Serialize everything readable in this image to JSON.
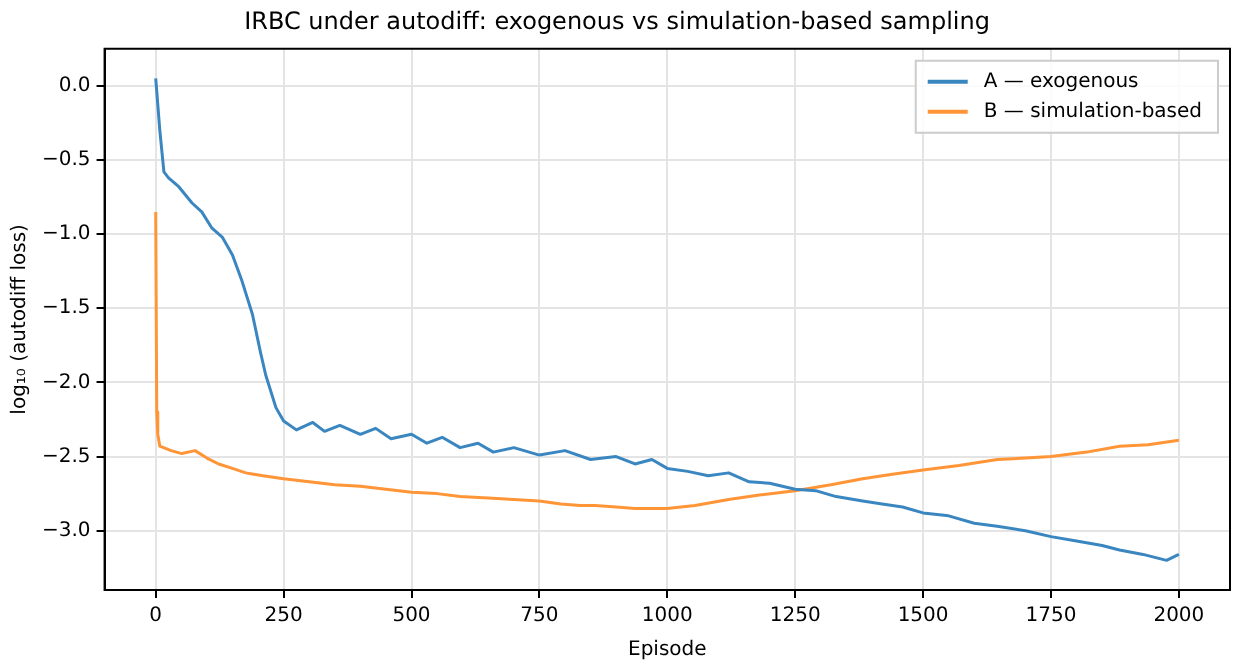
{
  "chart_data": {
    "type": "line",
    "title": "IRBC under autodiff: exogenous vs simulation-based sampling",
    "xlabel": "Episode",
    "ylabel": "log₁₀ (autodiff loss)",
    "xlim": [
      -100,
      2100
    ],
    "xticks": [
      0,
      250,
      500,
      750,
      1000,
      1250,
      1500,
      1750,
      2000
    ],
    "ylim": [
      -3.4,
      0.25
    ],
    "yticks": [
      {
        "value": -3,
        "label": "−3.0"
      },
      {
        "value": -2.5,
        "label": "−2.5"
      },
      {
        "value": -2,
        "label": "−2.0"
      },
      {
        "value": -1.5,
        "label": "−1.5"
      },
      {
        "value": -1,
        "label": "−1.0"
      },
      {
        "value": -0.5,
        "label": "−0.5"
      },
      {
        "value": 0,
        "label": "0.0"
      }
    ],
    "grid": true,
    "legend": "top right",
    "marker": "none",
    "line_style": "solid",
    "series": [
      {
        "name": "A — exogenous",
        "color": "#3a86c0",
        "x": [
          0,
          8,
          16,
          25,
          45,
          71,
          90,
          110,
          130,
          150,
          169,
          189,
          205,
          215,
          235,
          250,
          275,
          307,
          330,
          360,
          400,
          430,
          460,
          500,
          530,
          560,
          595,
          630,
          660,
          700,
          750,
          800,
          850,
          900,
          937,
          970,
          1000,
          1040,
          1080,
          1120,
          1160,
          1200,
          1250,
          1290,
          1330,
          1382,
          1420,
          1460,
          1500,
          1550,
          1600,
          1645,
          1700,
          1750,
          1800,
          1850,
          1884,
          1930,
          1976,
          2000
        ],
        "values": [
          0.05,
          -0.3,
          -0.58,
          -0.62,
          -0.68,
          -0.79,
          -0.85,
          -0.96,
          -1.02,
          -1.14,
          -1.32,
          -1.54,
          -1.8,
          -1.95,
          -2.17,
          -2.26,
          -2.32,
          -2.27,
          -2.33,
          -2.29,
          -2.35,
          -2.31,
          -2.38,
          -2.35,
          -2.41,
          -2.37,
          -2.44,
          -2.41,
          -2.47,
          -2.44,
          -2.49,
          -2.46,
          -2.52,
          -2.5,
          -2.55,
          -2.52,
          -2.58,
          -2.6,
          -2.63,
          -2.61,
          -2.67,
          -2.68,
          -2.72,
          -2.73,
          -2.77,
          -2.8,
          -2.82,
          -2.84,
          -2.88,
          -2.9,
          -2.95,
          -2.97,
          -3.0,
          -3.04,
          -3.07,
          -3.1,
          -3.13,
          -3.16,
          -3.2,
          -3.16
        ]
      },
      {
        "name": "B — simulation-based",
        "color": "#ff9537",
        "x": [
          0,
          2,
          4,
          8,
          30,
          51,
          77,
          100,
          123,
          150,
          176,
          210,
          250,
          300,
          350,
          400,
          450,
          500,
          550,
          595,
          650,
          700,
          750,
          792,
          830,
          859,
          900,
          937,
          1000,
          1054,
          1120,
          1180,
          1250,
          1320,
          1382,
          1440,
          1500,
          1570,
          1645,
          1700,
          1750,
          1820,
          1884,
          1940,
          2000
        ],
        "values": [
          -0.85,
          -2.2,
          -2.35,
          -2.43,
          -2.46,
          -2.48,
          -2.46,
          -2.51,
          -2.55,
          -2.58,
          -2.61,
          -2.63,
          -2.65,
          -2.67,
          -2.69,
          -2.7,
          -2.72,
          -2.74,
          -2.75,
          -2.77,
          -2.78,
          -2.79,
          -2.8,
          -2.82,
          -2.83,
          -2.83,
          -2.84,
          -2.85,
          -2.85,
          -2.83,
          -2.79,
          -2.76,
          -2.73,
          -2.69,
          -2.65,
          -2.62,
          -2.59,
          -2.56,
          -2.52,
          -2.51,
          -2.5,
          -2.47,
          -2.43,
          -2.42,
          -2.39
        ]
      }
    ]
  }
}
